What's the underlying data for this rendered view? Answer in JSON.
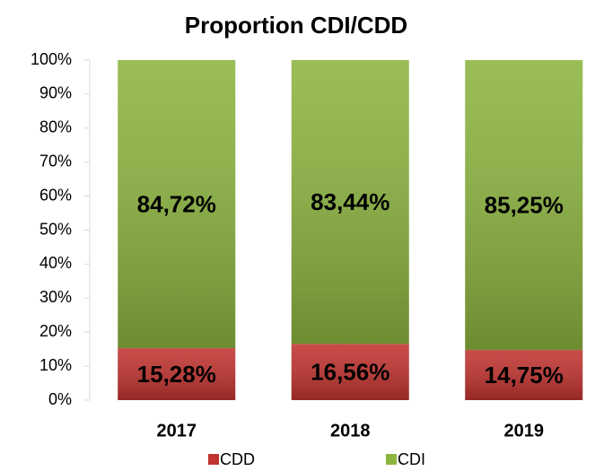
{
  "chart_data": {
    "type": "stacked_bar",
    "title": "Proportion CDI/CDD",
    "categories": [
      "2017",
      "2018",
      "2019"
    ],
    "series": [
      {
        "name": "CDD",
        "color": "#c0332f",
        "values": [
          15.28,
          16.56,
          14.75
        ],
        "value_labels": [
          "15,28%",
          "16,56%",
          "14,75%"
        ]
      },
      {
        "name": "CDI",
        "color": "#8cb43f",
        "values": [
          84.72,
          83.44,
          85.25
        ],
        "value_labels": [
          "84,72%",
          "83,44%",
          "85,25%"
        ]
      }
    ],
    "ylim": [
      0,
      100
    ],
    "yticks": [
      {
        "value": 0,
        "label": "0%"
      },
      {
        "value": 10,
        "label": "10%"
      },
      {
        "value": 20,
        "label": "20%"
      },
      {
        "value": 30,
        "label": "30%"
      },
      {
        "value": 40,
        "label": "40%"
      },
      {
        "value": 50,
        "label": "50%"
      },
      {
        "value": 60,
        "label": "60%"
      },
      {
        "value": 70,
        "label": "70%"
      },
      {
        "value": 80,
        "label": "80%"
      },
      {
        "value": 90,
        "label": "90%"
      },
      {
        "value": 100,
        "label": "100%"
      }
    ],
    "legend": "bottom"
  }
}
